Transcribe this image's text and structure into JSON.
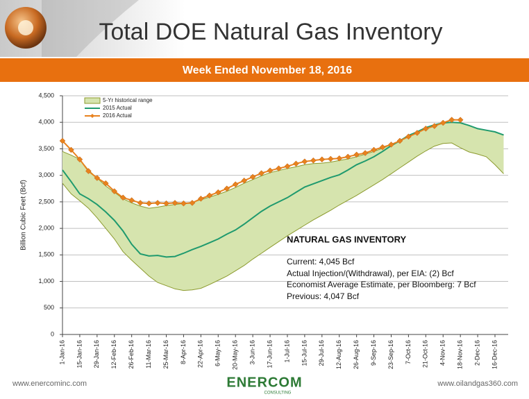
{
  "chart_data": {
    "type": "line",
    "title": "Total DOE Natural Gas Inventory",
    "subtitle": "Week Ended November 18, 2016",
    "y_label": "Billion Cubic Feet (Bcf)",
    "categories": [
      "1-Jan-16",
      null,
      "15-Jan-16",
      null,
      "29-Jan-16",
      null,
      "12-Feb-16",
      null,
      "26-Feb-16",
      null,
      "11-Mar-16",
      null,
      "25-Mar-16",
      null,
      "8-Apr-16",
      null,
      "22-Apr-16",
      null,
      "6-May-16",
      null,
      "20-May-16",
      null,
      "3-Jun-16",
      null,
      "17-Jun-16",
      null,
      "1-Jul-16",
      null,
      "15-Jul-16",
      null,
      "29-Jul-16",
      null,
      "12-Aug-16",
      null,
      "26-Aug-16",
      null,
      "9-Sep-16",
      null,
      "23-Sep-16",
      null,
      "7-Oct-16",
      null,
      "21-Oct-16",
      null,
      "4-Nov-16",
      null,
      "18-Nov-16",
      null,
      "2-Dec-16",
      null,
      "16-Dec-16",
      null
    ],
    "ylim": [
      0,
      4500
    ],
    "yticks": [
      0,
      500,
      {
        "value": 1000,
        "label": "1,000"
      },
      {
        "value": 1500,
        "label": "1,500"
      },
      {
        "value": 2000,
        "label": "2,000"
      },
      {
        "value": 2500,
        "label": "2,500"
      },
      {
        "value": 3000,
        "label": "3,000"
      },
      {
        "value": 3500,
        "label": "3,500"
      },
      {
        "value": 4000,
        "label": "4,000"
      },
      {
        "value": 4500,
        "label": "4,500"
      }
    ],
    "grid": true,
    "legend": "top-left",
    "series": [
      {
        "name": "5-Yr historical range",
        "color": "#d6e4ae",
        "line_color": "#8c9a2e",
        "high": [
          3450,
          3380,
          3300,
          3100,
          2950,
          2800,
          2680,
          2560,
          2480,
          2420,
          2380,
          2400,
          2430,
          2450,
          2470,
          2490,
          2540,
          2590,
          2640,
          2700,
          2770,
          2850,
          2920,
          2990,
          3050,
          3090,
          3130,
          3160,
          3200,
          3220,
          3230,
          3250,
          3280,
          3310,
          3350,
          3400,
          3450,
          3510,
          3580,
          3650,
          3730,
          3810,
          3880,
          3940,
          3980,
          4000,
          3990,
          3940,
          3880,
          3850,
          3820,
          3760
        ],
        "low": [
          2850,
          2650,
          2520,
          2380,
          2200,
          2000,
          1800,
          1560,
          1400,
          1250,
          1100,
          980,
          920,
          860,
          830,
          840,
          870,
          940,
          1020,
          1100,
          1200,
          1300,
          1420,
          1530,
          1640,
          1750,
          1860,
          1960,
          2060,
          2160,
          2250,
          2340,
          2440,
          2530,
          2620,
          2720,
          2820,
          2920,
          3030,
          3140,
          3250,
          3360,
          3460,
          3550,
          3600,
          3610,
          3520,
          3440,
          3400,
          3350,
          3200,
          3030
        ]
      },
      {
        "name": "2015 Actual",
        "color": "#1f9a6e",
        "values": [
          3100,
          2880,
          2650,
          2560,
          2450,
          2310,
          2150,
          1950,
          1700,
          1520,
          1480,
          1490,
          1460,
          1470,
          1530,
          1600,
          1660,
          1730,
          1800,
          1890,
          1970,
          2080,
          2200,
          2320,
          2420,
          2500,
          2580,
          2680,
          2780,
          2840,
          2900,
          2960,
          3010,
          3100,
          3200,
          3270,
          3350,
          3450,
          3560,
          3650,
          3750,
          3820,
          3900,
          3950,
          3990,
          4000,
          3990,
          3940,
          3880,
          3850,
          3820,
          3760
        ]
      },
      {
        "name": "2016 Actual",
        "color": "#e8821e",
        "marker": "diamond",
        "values": [
          3650,
          3480,
          3300,
          3080,
          2950,
          2850,
          2700,
          2580,
          2530,
          2480,
          2470,
          2480,
          2470,
          2480,
          2470,
          2480,
          2560,
          2620,
          2680,
          2750,
          2830,
          2900,
          2970,
          3040,
          3090,
          3130,
          3170,
          3220,
          3260,
          3280,
          3300,
          3310,
          3320,
          3350,
          3390,
          3420,
          3480,
          3530,
          3580,
          3650,
          3730,
          3800,
          3880,
          3930,
          3990,
          4047,
          4045,
          null,
          null,
          null,
          null,
          null
        ]
      }
    ],
    "annotation": {
      "title": "NATURAL GAS INVENTORY",
      "lines": [
        "Current: 4,045 Bcf",
        "Actual Injection/(Withdrawal), per EIA: (2) Bcf",
        "Economist Average Estimate, per Bloomberg: 7 Bcf",
        "Previous: 4,047 Bcf"
      ]
    },
    "footer": {
      "left": "www.enercominc.com",
      "logo": "ENERCOM",
      "logo_sub": "CONSULTING",
      "right": "www.oilandgas360.com"
    }
  }
}
